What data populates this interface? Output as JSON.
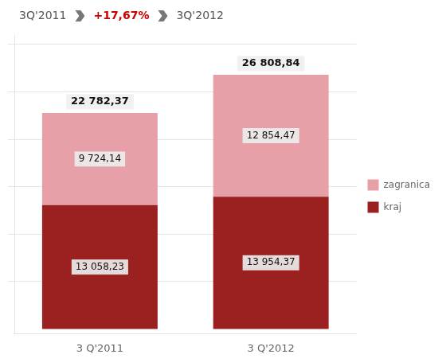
{
  "chart_data": {
    "type": "bar",
    "stacked": true,
    "categories": [
      "3 Q'2011",
      "3 Q'2012"
    ],
    "series": [
      {
        "name": "kraj",
        "color": "#9B2020",
        "values": [
          13058.23,
          13954.37
        ],
        "value_labels": [
          "13 058,23",
          "13 954,37"
        ]
      },
      {
        "name": "zagranica",
        "color": "#E8A0A8",
        "values": [
          9724.14,
          12854.47
        ],
        "value_labels": [
          "9 724,14",
          "12 854,47"
        ]
      }
    ],
    "totals": [
      22782.37,
      26808.84
    ],
    "total_labels": [
      "22 782,37",
      "26 808,84"
    ],
    "annotations": [
      {
        "text": "3Q'2011"
      },
      {
        "text": "+17,67%",
        "color": "#CC0000"
      },
      {
        "text": "3Q'2012"
      }
    ],
    "ylim": [
      -500,
      31000
    ],
    "yticks": [
      5000,
      10000,
      15000,
      20000,
      25000,
      30000
    ],
    "grid": true,
    "legend": "right",
    "data_labels": true,
    "tick_labels": "x"
  }
}
